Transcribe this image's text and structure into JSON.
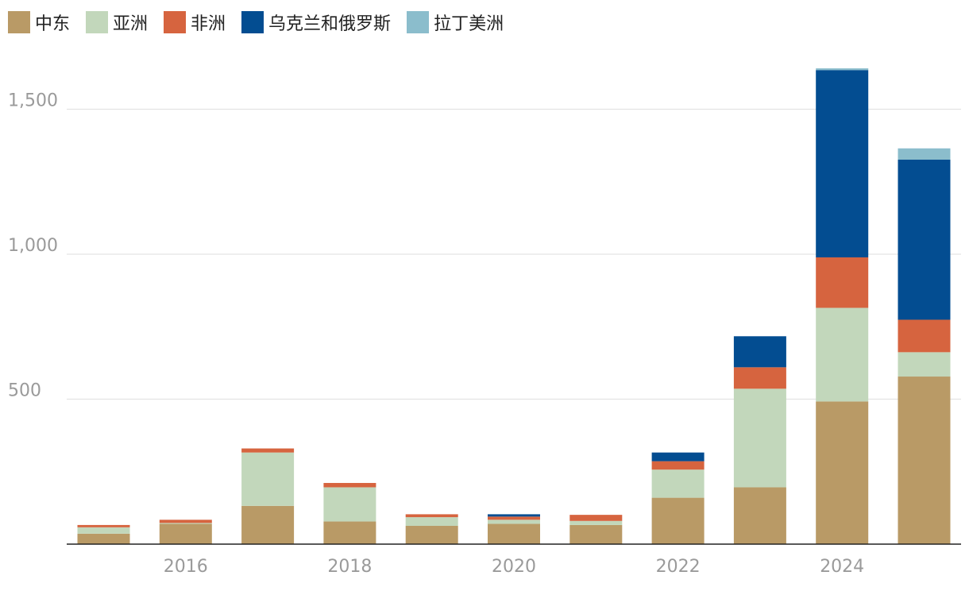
{
  "colors": {
    "中东": "#b99a66",
    "亚洲": "#c2d7bb",
    "非洲": "#d6643f",
    "乌克兰和俄罗斯": "#034d91",
    "拉丁美洲": "#8bbdcc",
    "grid": "#e3e3e3",
    "axis": "#222222",
    "tick": "#9a9a9a"
  },
  "chart_data": {
    "type": "bar",
    "stacked": true,
    "title": "",
    "xlabel": "",
    "ylabel": "",
    "ylim": [
      0,
      1650
    ],
    "yticks": [
      500,
      1000,
      1500
    ],
    "ytick_labels": [
      "500",
      "1,000",
      "1,500"
    ],
    "xtick_labels": [
      "2016",
      "2018",
      "2020",
      "2022",
      "2024"
    ],
    "categories": [
      "2015",
      "2016",
      "2017",
      "2018",
      "2019",
      "2020",
      "2021",
      "2022",
      "2023",
      "2024",
      "2025"
    ],
    "legend_position": "top-left",
    "grid": true,
    "series": [
      {
        "name": "中东",
        "values": [
          36,
          70,
          132,
          78,
          63,
          70,
          66,
          160,
          196,
          492,
          578
        ]
      },
      {
        "name": "亚洲",
        "values": [
          22,
          3,
          184,
          118,
          30,
          14,
          14,
          97,
          340,
          323,
          84
        ]
      },
      {
        "name": "非洲",
        "values": [
          8,
          11,
          14,
          15,
          10,
          11,
          21,
          29,
          74,
          174,
          112
        ]
      },
      {
        "name": "乌克兰和俄罗斯",
        "values": [
          0,
          0,
          0,
          0,
          0,
          8,
          0,
          30,
          107,
          646,
          552
        ]
      },
      {
        "name": "拉丁美洲",
        "values": [
          0,
          0,
          0,
          0,
          0,
          0,
          0,
          0,
          0,
          6,
          39
        ]
      }
    ]
  }
}
